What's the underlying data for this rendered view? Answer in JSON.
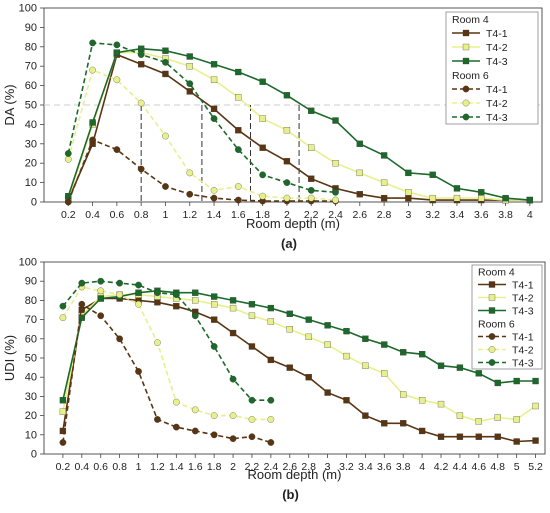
{
  "colors": {
    "dark_brown": "#5a3512",
    "yellow_green": "#e8f08c",
    "dark_green": "#1c6a2a",
    "axis": "#444444",
    "ref_line": "#cccccc",
    "drop_line": "#333333"
  },
  "chart_data": [
    {
      "type": "line",
      "panel_label": "(a)",
      "xlabel": "Room depth (m)",
      "ylabel": "DA (%)",
      "xlim": [
        0,
        4.1
      ],
      "ylim": [
        0,
        100
      ],
      "x_ticks": [
        0.2,
        0.4,
        0.6,
        0.8,
        1,
        1.2,
        1.4,
        1.6,
        1.8,
        2,
        2.2,
        2.4,
        2.6,
        2.8,
        3,
        3.2,
        3.4,
        3.6,
        3.8,
        4
      ],
      "x_tick_labels": [
        "0.2",
        "0.4",
        "0.6",
        "0.8",
        "1",
        "1.2",
        "1.4",
        "1.6",
        "1.8",
        "2",
        "2.2",
        "2.4",
        "2.6",
        "2.8",
        "3",
        "3.2",
        "3.4",
        "3.6",
        "3.8",
        "4"
      ],
      "y_ticks": [
        0,
        10,
        20,
        30,
        40,
        50,
        60,
        70,
        80,
        90,
        100
      ],
      "y_tick_labels": [
        "0",
        "10",
        "20",
        "30",
        "40",
        "50",
        "60",
        "70",
        "80",
        "90",
        "100"
      ],
      "reference_line": {
        "y": 50
      },
      "drop_lines": [
        {
          "x": 0.8,
          "y": 50
        },
        {
          "x": 1.3,
          "y": 50
        },
        {
          "x": 1.7,
          "y": 50
        },
        {
          "x": 2.1,
          "y": 50
        }
      ],
      "legend": {
        "position": "top-right",
        "groups": [
          "Room 4",
          "Room 6"
        ]
      },
      "series": [
        {
          "group": "Room 4",
          "name": "T4-1",
          "style": "solid",
          "marker": "square",
          "color": "dark_brown",
          "x": [
            0.2,
            0.4,
            0.6,
            0.8,
            1,
            1.2,
            1.4,
            1.6,
            1.8,
            2,
            2.2,
            2.4,
            2.6,
            2.8,
            3,
            3.2,
            3.4,
            3.6,
            3.8,
            4
          ],
          "y": [
            1,
            30,
            76,
            71,
            66,
            57,
            48,
            37,
            28,
            21,
            12,
            7,
            4,
            2,
            2,
            1,
            1,
            1,
            1,
            1
          ]
        },
        {
          "group": "Room 4",
          "name": "T4-2",
          "style": "solid",
          "marker": "square",
          "color": "yellow_green",
          "x": [
            0.2,
            0.4,
            0.6,
            0.8,
            1,
            1.2,
            1.4,
            1.6,
            1.8,
            2,
            2.2,
            2.4,
            2.6,
            2.8,
            3,
            3.2,
            3.4,
            3.6,
            3.8,
            4
          ],
          "y": [
            2,
            40,
            77,
            77,
            74,
            70,
            63,
            54,
            43,
            37,
            28,
            20,
            15,
            10,
            5,
            2,
            2,
            2,
            1,
            1
          ]
        },
        {
          "group": "Room 4",
          "name": "T4-3",
          "style": "solid",
          "marker": "square",
          "color": "dark_green",
          "x": [
            0.2,
            0.4,
            0.6,
            0.8,
            1,
            1.2,
            1.4,
            1.6,
            1.8,
            2,
            2.2,
            2.4,
            2.6,
            2.8,
            3,
            3.2,
            3.4,
            3.6,
            3.8,
            4
          ],
          "y": [
            3,
            41,
            77,
            79,
            78,
            75,
            71,
            67,
            62,
            55,
            47,
            42,
            30,
            24,
            15,
            14,
            7,
            5,
            2,
            1
          ]
        },
        {
          "group": "Room 6",
          "name": "T4-1",
          "style": "dashed",
          "marker": "circle",
          "color": "dark_brown",
          "x": [
            0.2,
            0.4,
            0.6,
            0.8,
            1,
            1.2,
            1.4,
            1.6,
            1.8,
            2,
            2.2,
            2.4
          ],
          "y": [
            0,
            32,
            27,
            17,
            8,
            4,
            2,
            1,
            0.5,
            0.5,
            0.5,
            0.5
          ]
        },
        {
          "group": "Room 6",
          "name": "T4-2",
          "style": "dashed",
          "marker": "circle",
          "color": "yellow_green",
          "x": [
            0.2,
            0.4,
            0.6,
            0.8,
            1,
            1.2,
            1.4,
            1.6,
            1.8,
            2,
            2.2,
            2.4
          ],
          "y": [
            22,
            68,
            63,
            51,
            34,
            15,
            6,
            8,
            3,
            2,
            2,
            1
          ]
        },
        {
          "group": "Room 6",
          "name": "T4-3",
          "style": "dashed",
          "marker": "circle",
          "color": "dark_green",
          "x": [
            0.2,
            0.4,
            0.6,
            0.8,
            1,
            1.2,
            1.4,
            1.6,
            1.8,
            2,
            2.2,
            2.4
          ],
          "y": [
            25,
            82,
            81,
            76,
            72,
            61,
            43,
            27,
            14,
            10,
            6,
            5
          ]
        }
      ]
    },
    {
      "type": "line",
      "panel_label": "(b)",
      "xlabel": "Room depth (m)",
      "ylabel": "UDI (%)",
      "xlim": [
        0,
        5.3
      ],
      "ylim": [
        0,
        100
      ],
      "x_ticks": [
        0.2,
        0.4,
        0.6,
        0.8,
        1,
        1.2,
        1.4,
        1.6,
        1.8,
        2,
        2.2,
        2.4,
        2.6,
        2.8,
        3,
        3.2,
        3.4,
        3.6,
        3.8,
        4,
        4.2,
        4.4,
        4.6,
        4.8,
        5,
        5.2
      ],
      "x_tick_labels": [
        "0.2",
        "0.4",
        "0.6",
        "0.8",
        "1",
        "1.2",
        "1.4",
        "1.6",
        "1.8",
        "2",
        "2.2",
        "2.4",
        "2.6",
        "2.8",
        "3",
        "3.2",
        "3.4",
        "3.6",
        "3.8",
        "4",
        "4.2",
        "4.4",
        "4.6",
        "4.8",
        "5",
        "5.2"
      ],
      "y_ticks": [
        0,
        10,
        20,
        30,
        40,
        50,
        60,
        70,
        80,
        90,
        100
      ],
      "y_tick_labels": [
        "0",
        "10",
        "20",
        "30",
        "40",
        "50",
        "60",
        "70",
        "80",
        "90",
        "100"
      ],
      "legend": {
        "position": "top-right",
        "groups": [
          "Room 4",
          "Room 6"
        ]
      },
      "series": [
        {
          "group": "Room 4",
          "name": "T4-1",
          "style": "solid",
          "marker": "square",
          "color": "dark_brown",
          "x": [
            0.2,
            0.4,
            0.6,
            0.8,
            1,
            1.2,
            1.4,
            1.6,
            1.8,
            2,
            2.2,
            2.4,
            2.6,
            2.8,
            3,
            3.2,
            3.4,
            3.6,
            3.8,
            4,
            4.2,
            4.4,
            4.6,
            4.8,
            5,
            5.2
          ],
          "y": [
            12,
            75,
            81,
            81,
            80,
            79,
            77,
            74,
            70,
            63,
            56,
            49,
            45,
            40,
            32,
            28,
            20,
            16,
            16,
            12,
            9,
            9,
            9,
            9,
            6.5,
            7
          ]
        },
        {
          "group": "Room 4",
          "name": "T4-2",
          "style": "solid",
          "marker": "square",
          "color": "yellow_green",
          "x": [
            0.2,
            0.4,
            0.6,
            0.8,
            1,
            1.2,
            1.4,
            1.6,
            1.8,
            2,
            2.2,
            2.4,
            2.6,
            2.8,
            3,
            3.2,
            3.4,
            3.6,
            3.8,
            4,
            4.2,
            4.4,
            4.6,
            4.8,
            5,
            5.2
          ],
          "y": [
            22,
            72,
            82,
            83,
            83,
            82,
            81,
            80,
            78,
            76,
            72,
            69,
            65,
            61,
            57,
            51,
            46,
            42,
            31,
            28,
            26,
            20,
            17,
            19,
            18,
            25
          ]
        },
        {
          "group": "Room 4",
          "name": "T4-3",
          "style": "solid",
          "marker": "square",
          "color": "dark_green",
          "x": [
            0.2,
            0.4,
            0.6,
            0.8,
            1,
            1.2,
            1.4,
            1.6,
            1.8,
            2,
            2.2,
            2.4,
            2.6,
            2.8,
            3,
            3.2,
            3.4,
            3.6,
            3.8,
            4,
            4.2,
            4.4,
            4.6,
            4.8,
            5,
            5.2
          ],
          "y": [
            28,
            71,
            81,
            82,
            84,
            85,
            84,
            84,
            82,
            80,
            78,
            76,
            73,
            70,
            67,
            64,
            60,
            57,
            53,
            52,
            46,
            45,
            42,
            37,
            38,
            38
          ]
        },
        {
          "group": "Room 6",
          "name": "T4-1",
          "style": "dashed",
          "marker": "circle",
          "color": "dark_brown",
          "x": [
            0.2,
            0.4,
            0.6,
            0.8,
            1,
            1.2,
            1.4,
            1.6,
            1.8,
            2,
            2.2,
            2.4
          ],
          "y": [
            6,
            78,
            72,
            60,
            43,
            18,
            14,
            12,
            10,
            8,
            9,
            6
          ]
        },
        {
          "group": "Room 6",
          "name": "T4-2",
          "style": "dashed",
          "marker": "circle",
          "color": "yellow_green",
          "x": [
            0.2,
            0.4,
            0.6,
            0.8,
            1,
            1.2,
            1.4,
            1.6,
            1.8,
            2,
            2.2,
            2.4
          ],
          "y": [
            71,
            87,
            85,
            83,
            78,
            58,
            27,
            23,
            20,
            20,
            18,
            18
          ]
        },
        {
          "group": "Room 6",
          "name": "T4-3",
          "style": "dashed",
          "marker": "circle",
          "color": "dark_green",
          "x": [
            0.2,
            0.4,
            0.6,
            0.8,
            1,
            1.2,
            1.4,
            1.6,
            1.8,
            2,
            2.2,
            2.4
          ],
          "y": [
            77,
            89,
            90,
            89,
            88,
            84,
            83,
            72,
            56,
            39,
            28,
            28
          ]
        }
      ]
    }
  ]
}
